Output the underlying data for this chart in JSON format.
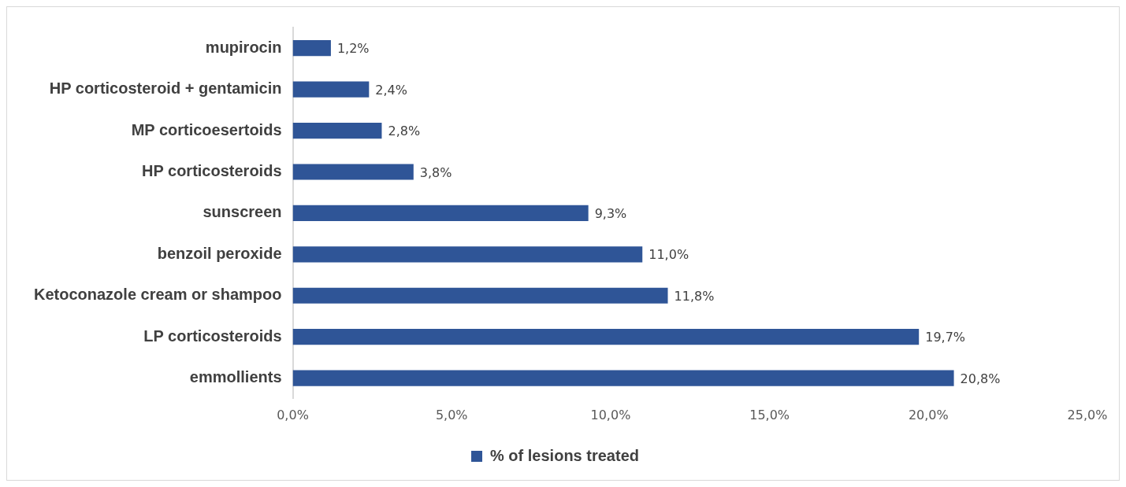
{
  "chart_data": {
    "type": "bar",
    "orientation": "horizontal",
    "categories": [
      "mupirocin",
      "HP corticosteroid + gentamicin",
      "MP corticoesertoids",
      "HP corticosteroids",
      "sunscreen",
      "benzoil peroxide",
      "Ketoconazole cream or shampoo",
      "LP corticosteroids",
      "emmollients"
    ],
    "series": [
      {
        "name": "% of lesions treated",
        "color": "#2f5597",
        "values": [
          1.2,
          2.4,
          2.8,
          3.8,
          9.3,
          11.0,
          11.8,
          19.7,
          20.8
        ],
        "value_labels": [
          "1,2%",
          "2,4%",
          "2,8%",
          "3,8%",
          "9,3%",
          "11,0%",
          "11,8%",
          "19,7%",
          "20,8%"
        ]
      }
    ],
    "xlim": [
      0,
      25
    ],
    "xticks": [
      {
        "value": 0,
        "label": "0,0%"
      },
      {
        "value": 5,
        "label": "5,0%"
      },
      {
        "value": 10,
        "label": "10,0%"
      },
      {
        "value": 15,
        "label": "15,0%"
      },
      {
        "value": 20,
        "label": "20,0%"
      },
      {
        "value": 25,
        "label": "25,0%"
      }
    ],
    "grid": false,
    "legend": "bottom"
  }
}
